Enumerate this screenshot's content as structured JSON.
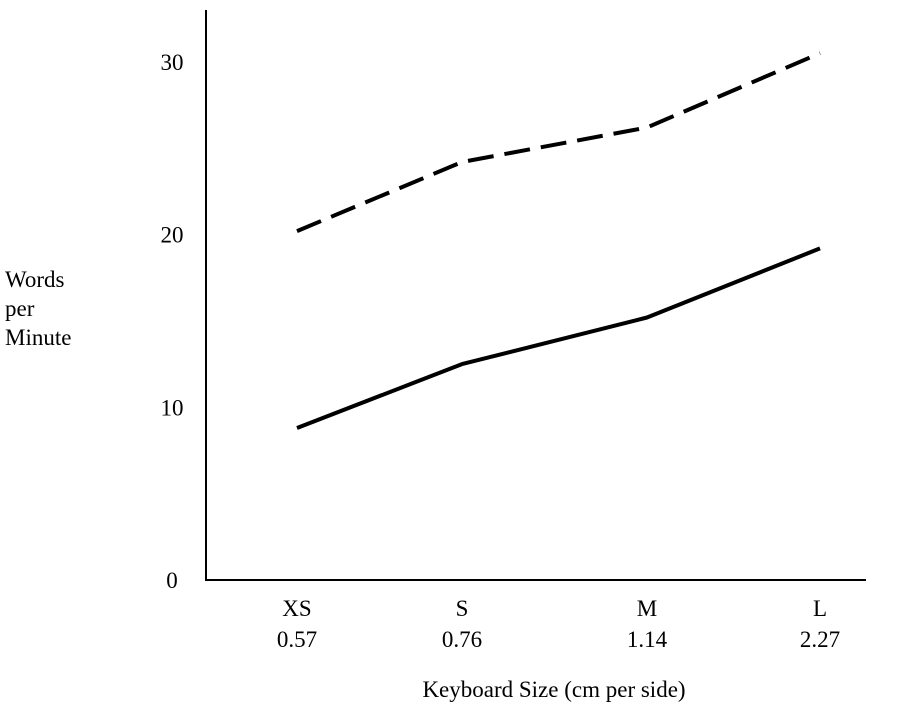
{
  "chart_data": {
    "type": "line",
    "title": "",
    "xlabel": "Keyboard Size  (cm per side)",
    "ylabel_lines": [
      "Words",
      "per",
      "Minute"
    ],
    "categories": [
      "XS",
      "S",
      "M",
      "L"
    ],
    "category_sublabels": [
      "0.57",
      "0.76",
      "1.14",
      "2.27"
    ],
    "y_ticks": [
      "0",
      "10",
      "20",
      "30"
    ],
    "ylim": [
      0,
      33
    ],
    "grid": false,
    "series": [
      {
        "values": [
          20.2,
          24.2,
          26.2,
          30.5
        ],
        "style": "dashed",
        "color": "#000000"
      },
      {
        "values": [
          8.8,
          12.5,
          15.2,
          19.2
        ],
        "style": "solid",
        "color": "#000000"
      }
    ]
  }
}
